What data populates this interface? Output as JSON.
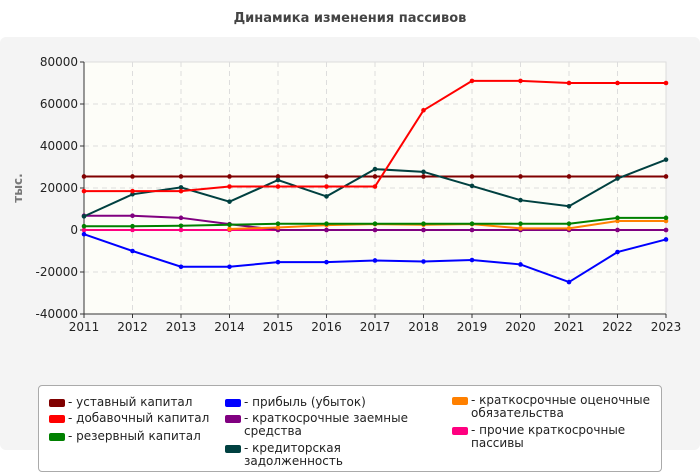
{
  "chart_data": {
    "type": "line",
    "title": "Динамика изменения пассивов",
    "ylabel": "тыс.",
    "xlabel": "",
    "ylim": [
      -40000,
      80000
    ],
    "yticks": [
      -40000,
      -20000,
      0,
      20000,
      40000,
      60000,
      80000
    ],
    "grid": true,
    "legend_position": "bottom",
    "x": [
      "2011",
      "2012",
      "2013",
      "2014",
      "2015",
      "2016",
      "2017",
      "2018",
      "2019",
      "2020",
      "2021",
      "2022",
      "2023"
    ],
    "series": [
      {
        "name": "уставный капитал",
        "color": "#800000",
        "values": [
          25500,
          25500,
          25500,
          25500,
          25500,
          25500,
          25500,
          25500,
          25500,
          25500,
          25500,
          25500,
          25500
        ]
      },
      {
        "name": "добавочный капитал",
        "color": "#ff0000",
        "values": [
          18500,
          18500,
          18500,
          20700,
          20700,
          20700,
          20700,
          57000,
          71000,
          71000,
          70000,
          70000,
          70000
        ]
      },
      {
        "name": "резервный капитал",
        "color": "#008000",
        "values": [
          1800,
          1800,
          2000,
          2500,
          3000,
          3000,
          3000,
          3000,
          3000,
          3000,
          3000,
          5800,
          5800
        ]
      },
      {
        "name": "прибыль (убыток)",
        "color": "#0000ff",
        "values": [
          -2000,
          -10000,
          -17500,
          -17500,
          -15300,
          -15300,
          -14500,
          -15000,
          -14300,
          -16400,
          -24800,
          -10500,
          -4500
        ]
      },
      {
        "name": "краткосрочные заемные средства",
        "color": "#800080",
        "values": [
          6800,
          6800,
          5800,
          2800,
          0,
          0,
          0,
          0,
          0,
          0,
          0,
          0,
          0
        ]
      },
      {
        "name": "кредиторская задолженность",
        "color": "#004040",
        "values": [
          6500,
          17000,
          20300,
          13500,
          23800,
          16000,
          29000,
          27700,
          21000,
          14200,
          11300,
          24500,
          33500
        ]
      },
      {
        "name": "краткосрочные оценочные обязательства",
        "color": "#ff8000",
        "values": [
          null,
          null,
          null,
          500,
          1200,
          2300,
          2800,
          2500,
          2800,
          800,
          800,
          4300,
          4300
        ]
      },
      {
        "name": "прочие краткосрочные пассивы",
        "color": "#ff0080",
        "values": [
          0,
          0,
          0,
          0,
          0,
          0,
          0,
          0,
          0,
          0,
          0,
          0,
          0
        ]
      }
    ]
  }
}
